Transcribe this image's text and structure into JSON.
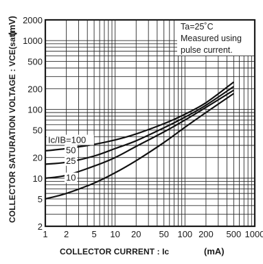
{
  "chart_data": {
    "type": "line",
    "title": "",
    "xlabel": "COLLECTOR CURRENT : Ic",
    "xunit": "(mA)",
    "ylabel": "COLLECTOR SATURATION VOLTAGE : VCE(sat)",
    "ylabel_sub": "CE(sat)",
    "yunit": "(mV)",
    "xscale": "log",
    "yscale": "log",
    "xlim": [
      1,
      1000
    ],
    "ylim": [
      2,
      2000
    ],
    "grid": true,
    "x_ticks": [
      {
        "value": 1,
        "label": "1"
      },
      {
        "value": 2,
        "label": "2"
      },
      {
        "value": 5,
        "label": "5"
      },
      {
        "value": 10,
        "label": "10"
      },
      {
        "value": 20,
        "label": "20"
      },
      {
        "value": 50,
        "label": "50"
      },
      {
        "value": 100,
        "label": "100"
      },
      {
        "value": 200,
        "label": "200"
      },
      {
        "value": 500,
        "label": "500"
      },
      {
        "value": 1000,
        "label": "1000"
      }
    ],
    "y_ticks": [
      {
        "value": 2,
        "label": "2"
      },
      {
        "value": 5,
        "label": "5"
      },
      {
        "value": 10,
        "label": "10"
      },
      {
        "value": 20,
        "label": "20"
      },
      {
        "value": 50,
        "label": "50"
      },
      {
        "value": 100,
        "label": "100"
      },
      {
        "value": 200,
        "label": "200"
      },
      {
        "value": 500,
        "label": "500"
      },
      {
        "value": 1000,
        "label": "1000"
      },
      {
        "value": 2000,
        "label": "2000"
      }
    ],
    "annotation": {
      "line1": "Ta=25˚C",
      "line2": "Measured using",
      "line3": "pulse current."
    },
    "series": [
      {
        "name": "Ic/IB=100",
        "x": [
          1,
          2,
          5,
          10,
          20,
          50,
          100,
          200,
          500
        ],
        "y": [
          25,
          27,
          31,
          36,
          44,
          62,
          85,
          125,
          250
        ]
      },
      {
        "name": "50",
        "x": [
          1,
          2,
          5,
          10,
          20,
          50,
          100,
          200,
          500
        ],
        "y": [
          16,
          17,
          21,
          27,
          35,
          54,
          77,
          115,
          215
        ]
      },
      {
        "name": "25",
        "x": [
          1,
          2,
          5,
          10,
          20,
          50,
          100,
          200,
          500
        ],
        "y": [
          10,
          11,
          15,
          20,
          29,
          47,
          70,
          107,
          190
        ]
      },
      {
        "name": "10",
        "x": [
          1,
          2,
          5,
          10,
          20,
          50,
          100,
          200,
          500
        ],
        "y": [
          5,
          6,
          8.5,
          12,
          18,
          33,
          55,
          90,
          170
        ]
      }
    ]
  }
}
